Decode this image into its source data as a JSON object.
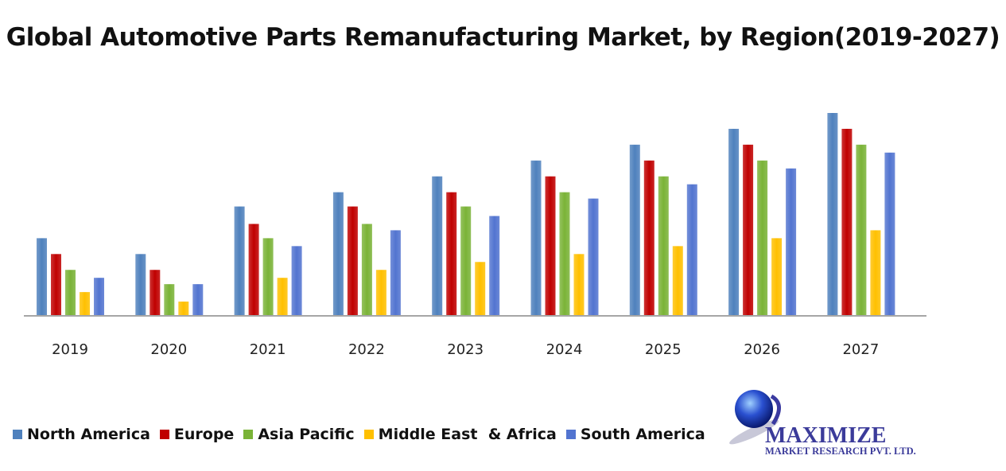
{
  "chart_data": {
    "type": "bar",
    "title": "Global Automotive Parts Remanufacturing Market, by Region(2019-2027)",
    "xlabel": "",
    "ylabel": "",
    "categories": [
      "2019",
      "2020",
      "2021",
      "2022",
      "2023",
      "2024",
      "2025",
      "2026",
      "2027"
    ],
    "ylim": [
      0,
      13
    ],
    "grid": false,
    "legend_position": "bottom-left",
    "series": [
      {
        "name": "North America",
        "color": "#4f81bd",
        "values": [
          4.9,
          3.9,
          6.9,
          7.8,
          8.8,
          9.8,
          10.8,
          11.8,
          12.8
        ]
      },
      {
        "name": "Europe",
        "color": "#c00000",
        "values": [
          3.9,
          2.9,
          5.8,
          6.9,
          7.8,
          8.8,
          9.8,
          10.8,
          11.8
        ]
      },
      {
        "name": "Asia Pacific",
        "color": "#7ab337",
        "values": [
          2.9,
          2.0,
          4.9,
          5.8,
          6.9,
          7.8,
          8.8,
          9.8,
          10.8
        ]
      },
      {
        "name": "Middle East  & Africa",
        "color": "#ffc000",
        "values": [
          1.5,
          0.9,
          2.4,
          2.9,
          3.4,
          3.9,
          4.4,
          4.9,
          5.4
        ]
      },
      {
        "name": "South America",
        "color": "#5274d0",
        "values": [
          2.4,
          2.0,
          4.4,
          5.4,
          6.3,
          7.4,
          8.3,
          9.3,
          10.3
        ]
      }
    ]
  },
  "logo": {
    "line1": "MAXIMIZE",
    "line2": "MARKET RESEARCH PVT. LTD."
  }
}
